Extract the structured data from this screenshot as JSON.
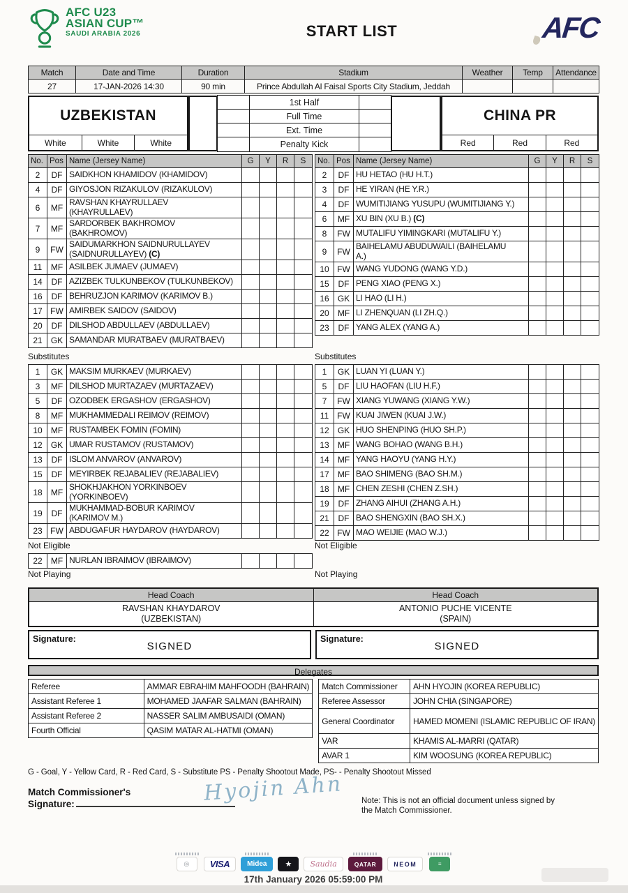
{
  "header": {
    "logo_line1": "AFC U23",
    "logo_line2": "ASIAN CUP™",
    "logo_line3": "SAUDI ARABIA 2026",
    "title": "START LIST",
    "afc_logo_text": "AFC"
  },
  "match_info": {
    "headers": [
      "Match",
      "Date and Time",
      "Duration",
      "Stadium",
      "Weather",
      "Temp",
      "Attendance"
    ],
    "values": [
      "27",
      "17-JAN-2026 14:30",
      "90 min",
      "Prince Abdullah Al Faisal Sports City Stadium, Jeddah",
      "",
      "",
      ""
    ]
  },
  "teams": {
    "home": {
      "name": "UZBEKISTAN",
      "colors": [
        "White",
        "White",
        "White"
      ]
    },
    "away": {
      "name": "CHINA PR",
      "colors": [
        "Red",
        "Red",
        "Red"
      ]
    }
  },
  "score_rows": [
    "1st Half",
    "Full Time",
    "Ext. Time",
    "Penalty Kick"
  ],
  "roster_headers": [
    "No.",
    "Pos",
    "Name (Jersey Name)",
    "G",
    "Y",
    "R",
    "S"
  ],
  "captain_mark": "(C)",
  "home": {
    "starters": [
      {
        "no": "2",
        "pos": "DF",
        "lines": [
          "SAIDKHON KHAMIDOV (KHAMIDOV)"
        ]
      },
      {
        "no": "4",
        "pos": "DF",
        "lines": [
          "GIYOSJON RIZAKULOV (RIZAKULOV)"
        ]
      },
      {
        "no": "6",
        "pos": "MF",
        "lines": [
          "RAVSHAN KHAYRULLAEV",
          "(KHAYRULLAEV)"
        ]
      },
      {
        "no": "7",
        "pos": "MF",
        "lines": [
          "SARDORBEK BAKHROMOV",
          "(BAKHROMOV)"
        ]
      },
      {
        "no": "9",
        "pos": "FW",
        "lines": [
          "SAIDUMARKHON SAIDNURULLAYEV",
          "(SAIDNURULLAYEV)"
        ],
        "cap": true
      },
      {
        "no": "11",
        "pos": "MF",
        "lines": [
          "ASILBEK JUMAEV (JUMAEV)"
        ]
      },
      {
        "no": "14",
        "pos": "DF",
        "lines": [
          "AZIZBEK TULKUNBEKOV (TULKUNBEKOV)"
        ]
      },
      {
        "no": "16",
        "pos": "DF",
        "lines": [
          "BEHRUZJON KARIMOV (KARIMOV B.)"
        ]
      },
      {
        "no": "17",
        "pos": "FW",
        "lines": [
          "AMIRBEK SAIDOV (SAIDOV)"
        ]
      },
      {
        "no": "20",
        "pos": "DF",
        "lines": [
          "DILSHOD ABDULLAEV (ABDULLAEV)"
        ]
      },
      {
        "no": "21",
        "pos": "GK",
        "lines": [
          "SAMANDAR MURATBAEV (MURATBAEV)"
        ]
      }
    ],
    "substitutes_label": "Substitutes",
    "substitutes": [
      {
        "no": "1",
        "pos": "GK",
        "lines": [
          "MAKSIM MURKAEV (MURKAEV)"
        ]
      },
      {
        "no": "3",
        "pos": "MF",
        "lines": [
          "DILSHOD MURTAZAEV (MURTAZAEV)"
        ]
      },
      {
        "no": "5",
        "pos": "DF",
        "lines": [
          "OZODBEK ERGASHOV (ERGASHOV)"
        ]
      },
      {
        "no": "8",
        "pos": "MF",
        "lines": [
          "MUKHAMMEDALI REIMOV (REIMOV)"
        ]
      },
      {
        "no": "10",
        "pos": "MF",
        "lines": [
          "RUSTAMBEK FOMIN (FOMIN)"
        ]
      },
      {
        "no": "12",
        "pos": "GK",
        "lines": [
          "UMAR RUSTAMOV (RUSTAMOV)"
        ]
      },
      {
        "no": "13",
        "pos": "DF",
        "lines": [
          "ISLOM ANVAROV (ANVAROV)"
        ]
      },
      {
        "no": "15",
        "pos": "DF",
        "lines": [
          "MEYIRBEK REJABALIEV (REJABALIEV)"
        ]
      },
      {
        "no": "18",
        "pos": "MF",
        "lines": [
          "SHOKHJAKHON YORKINBOEV",
          "(YORKINBOEV)"
        ]
      },
      {
        "no": "19",
        "pos": "DF",
        "lines": [
          "MUKHAMMAD-BOBUR KARIMOV",
          "(KARIMOV M.)"
        ]
      },
      {
        "no": "23",
        "pos": "FW",
        "lines": [
          "ABDUGAFUR HAYDAROV (HAYDAROV)"
        ]
      }
    ],
    "not_eligible_label": "Not Eligible",
    "not_eligible": [
      {
        "no": "22",
        "pos": "MF",
        "lines": [
          "NURLAN IBRAIMOV (IBRAIMOV)"
        ]
      }
    ],
    "not_playing_label": "Not Playing",
    "head_coach_label": "Head Coach",
    "head_coach": "RAVSHAN KHAYDAROV",
    "head_coach_country": "(UZBEKISTAN)",
    "signature_label": "Signature:",
    "signature_value": "SIGNED"
  },
  "away": {
    "starters": [
      {
        "no": "2",
        "pos": "DF",
        "lines": [
          "HU HETAO (HU H.T.)"
        ]
      },
      {
        "no": "3",
        "pos": "DF",
        "lines": [
          "HE YIRAN (HE Y.R.)"
        ]
      },
      {
        "no": "4",
        "pos": "DF",
        "lines": [
          "WUMITIJIANG YUSUPU (WUMITIJIANG Y.)"
        ]
      },
      {
        "no": "6",
        "pos": "MF",
        "lines": [
          "XU BIN (XU B.)"
        ],
        "cap": true
      },
      {
        "no": "8",
        "pos": "FW",
        "lines": [
          "MUTALIFU YIMINGKARI (MUTALIFU Y.)"
        ]
      },
      {
        "no": "9",
        "pos": "FW",
        "lines": [
          "BAIHELAMU ABUDUWAILI (BAIHELAMU",
          "A.)"
        ]
      },
      {
        "no": "10",
        "pos": "FW",
        "lines": [
          "WANG YUDONG (WANG Y.D.)"
        ]
      },
      {
        "no": "15",
        "pos": "DF",
        "lines": [
          "PENG XIAO (PENG X.)"
        ]
      },
      {
        "no": "16",
        "pos": "GK",
        "lines": [
          "LI HAO (LI H.)"
        ]
      },
      {
        "no": "20",
        "pos": "MF",
        "lines": [
          "LI ZHENQUAN (LI ZH.Q.)"
        ]
      },
      {
        "no": "23",
        "pos": "DF",
        "lines": [
          "YANG ALEX (YANG A.)"
        ]
      }
    ],
    "substitutes_label": "Substitutes",
    "substitutes": [
      {
        "no": "1",
        "pos": "GK",
        "lines": [
          "LUAN YI (LUAN Y.)"
        ]
      },
      {
        "no": "5",
        "pos": "DF",
        "lines": [
          "LIU HAOFAN (LIU H.F.)"
        ]
      },
      {
        "no": "7",
        "pos": "FW",
        "lines": [
          "XIANG YUWANG (XIANG Y.W.)"
        ]
      },
      {
        "no": "11",
        "pos": "FW",
        "lines": [
          "KUAI JIWEN (KUAI J.W.)"
        ]
      },
      {
        "no": "12",
        "pos": "GK",
        "lines": [
          "HUO SHENPING (HUO SH.P.)"
        ]
      },
      {
        "no": "13",
        "pos": "MF",
        "lines": [
          "WANG BOHAO (WANG B.H.)"
        ]
      },
      {
        "no": "14",
        "pos": "MF",
        "lines": [
          "YANG HAOYU (YANG H.Y.)"
        ]
      },
      {
        "no": "17",
        "pos": "MF",
        "lines": [
          "BAO SHIMENG (BAO SH.M.)"
        ]
      },
      {
        "no": "18",
        "pos": "MF",
        "lines": [
          "CHEN ZESHI (CHEN Z.SH.)"
        ]
      },
      {
        "no": "19",
        "pos": "DF",
        "lines": [
          "ZHANG AIHUI (ZHANG A.H.)"
        ]
      },
      {
        "no": "21",
        "pos": "DF",
        "lines": [
          "BAO SHENGXIN (BAO SH.X.)"
        ]
      },
      {
        "no": "22",
        "pos": "FW",
        "lines": [
          "MAO WEIJIE (MAO W.J.)"
        ]
      }
    ],
    "not_eligible_label": "Not Eligible",
    "not_eligible": [],
    "not_playing_label": "Not Playing",
    "head_coach_label": "Head Coach",
    "head_coach": "ANTONIO PUCHE VICENTE",
    "head_coach_country": "(SPAIN)",
    "signature_label": "Signature:",
    "signature_value": "SIGNED"
  },
  "delegates": {
    "title": "Delegates",
    "left": [
      {
        "role": "Referee",
        "name": "AMMAR EBRAHIM MAHFOODH (BAHRAIN)"
      },
      {
        "role": "Assistant Referee 1",
        "name": "MOHAMED JAAFAR SALMAN (BAHRAIN)"
      },
      {
        "role": "Assistant Referee 2",
        "name": "NASSER SALIM AMBUSAIDI (OMAN)"
      },
      {
        "role": "Fourth Official",
        "name": "QASIM MATAR AL-HATMI (OMAN)"
      }
    ],
    "right": [
      {
        "role": "Match Commissioner",
        "name": "AHN HYOJIN (KOREA REPUBLIC)"
      },
      {
        "role": "Referee Assessor",
        "name": "JOHN CHIA (SINGAPORE)"
      },
      {
        "role": "General Coordinator",
        "name": "HAMED MOMENI (ISLAMIC REPUBLIC OF IRAN)",
        "tall": true
      },
      {
        "role": "VAR",
        "name": "KHAMIS AL-MARRI (QATAR)"
      },
      {
        "role": "AVAR 1",
        "name": "KIM WOOSUNG (KOREA REPUBLIC)"
      }
    ]
  },
  "footer": {
    "legend": "G - Goal, Y - Yellow Card, R - Red Card, S - Substitute PS - Penalty Shootout Made, PS- - Penalty Shootout Missed",
    "mc_label_line1": "Match Commissioner's",
    "mc_label_line2": "Signature:",
    "mc_signature_name": "Hyojin Ahn",
    "note": "Note: This is not an official document unless signed by the Match Commissioner.",
    "timestamp": "17th January 2026 05:59:00 PM"
  },
  "sponsors": {
    "items": [
      {
        "name": "partner-logo",
        "label": "",
        "glyph": "◎",
        "style": "partner",
        "caption": true
      },
      {
        "name": "visa-logo",
        "label": "VISA",
        "style": "visa",
        "caption": false
      },
      {
        "name": "midea-logo",
        "label": "Midea",
        "style": "midea",
        "caption": true
      },
      {
        "name": "dark-partner-logo",
        "label": "",
        "glyph": "★",
        "style": "dark",
        "caption": false
      },
      {
        "name": "saudia-logo",
        "label": "Saudia",
        "style": "saudia",
        "caption": false
      },
      {
        "name": "qatar-airways-logo",
        "label": "QATAR",
        "style": "qatar",
        "caption": true
      },
      {
        "name": "neom-logo",
        "label": "NEOM",
        "style": "neom",
        "caption": false
      },
      {
        "name": "green-partner-logo",
        "label": "",
        "glyph": "≡",
        "style": "green",
        "caption": true
      }
    ]
  }
}
